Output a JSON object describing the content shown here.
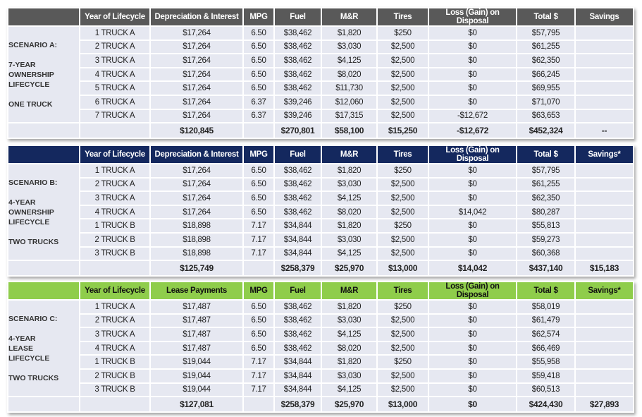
{
  "headers_ownership": [
    "",
    "Year of Lifecycle",
    "Depreciation & Interest",
    "MPG",
    "Fuel",
    "M&R",
    "Tires",
    "Loss (Gain) on Disposal",
    "Total $",
    "Savings"
  ],
  "tables": [
    {
      "id": "tA",
      "headers": [
        "",
        "Year of Lifecycle",
        "Depreciation & Interest",
        "MPG",
        "Fuel",
        "M&R",
        "Tires",
        "Loss (Gain) on Disposal",
        "Total $",
        "Savings"
      ],
      "label_lines": [
        "SCENARIO A:",
        "",
        "7-YEAR",
        "OWNERSHIP",
        "LIFECYCLE",
        "",
        "ONE TRUCK"
      ],
      "rows": [
        [
          "1 TRUCK A",
          "$17,264",
          "6.50",
          "$38,462",
          "$1,820",
          "$250",
          "$0",
          "$57,795",
          ""
        ],
        [
          "2 TRUCK A",
          "$17,264",
          "6.50",
          "$38,462",
          "$3,030",
          "$2,500",
          "$0",
          "$61,255",
          ""
        ],
        [
          "3 TRUCK A",
          "$17,264",
          "6.50",
          "$38,462",
          "$4,125",
          "$2,500",
          "$0",
          "$62,350",
          ""
        ],
        [
          "4 TRUCK A",
          "$17,264",
          "6.50",
          "$38,462",
          "$8,020",
          "$2,500",
          "$0",
          "$66,245",
          ""
        ],
        [
          "5 TRUCK A",
          "$17,264",
          "6.50",
          "$38,462",
          "$11,730",
          "$2,500",
          "$0",
          "$69,955",
          ""
        ],
        [
          "6 TRUCK A",
          "$17,264",
          "6.37",
          "$39,246",
          "$12,060",
          "$2,500",
          "$0",
          "$71,070",
          ""
        ],
        [
          "7 TRUCK A",
          "$17,264",
          "6.37",
          "$39,246",
          "$17,315",
          "$2,500",
          "-$12,672",
          "$63,653",
          ""
        ]
      ],
      "totals": [
        "",
        "$120,845",
        "",
        "$270,801",
        "$58,100",
        "$15,250",
        "-$12,672",
        "$452,324",
        "--"
      ]
    },
    {
      "id": "tB",
      "headers": [
        "",
        "Year of Lifecycle",
        "Depreciation & Interest",
        "MPG",
        "Fuel",
        "M&R",
        "Tires",
        "Loss (Gain) on Disposal",
        "Total $",
        "Savings*"
      ],
      "label_lines": [
        "SCENARIO B:",
        "",
        "4-YEAR",
        "OWNERSHIP",
        "LIFECYCLE",
        "",
        "TWO TRUCKS"
      ],
      "rows": [
        [
          "1 TRUCK A",
          "$17,264",
          "6.50",
          "$38,462",
          "$1,820",
          "$250",
          "$0",
          "$57,795",
          ""
        ],
        [
          "2 TRUCK A",
          "$17,264",
          "6.50",
          "$38,462",
          "$3,030",
          "$2,500",
          "$0",
          "$61,255",
          ""
        ],
        [
          "3 TRUCK A",
          "$17,264",
          "6.50",
          "$38,462",
          "$4,125",
          "$2,500",
          "$0",
          "$62,350",
          ""
        ],
        [
          "4 TRUCK A",
          "$17,264",
          "6.50",
          "$38,462",
          "$8,020",
          "$2,500",
          "$14,042",
          "$80,287",
          ""
        ],
        [
          "1 TRUCK B",
          "$18,898",
          "7.17",
          "$34,844",
          "$1,820",
          "$250",
          "$0",
          "$55,813",
          ""
        ],
        [
          "2 TRUCK B",
          "$18,898",
          "7.17",
          "$34,844",
          "$3,030",
          "$2,500",
          "$0",
          "$59,273",
          ""
        ],
        [
          "3 TRUCK B",
          "$18,898",
          "7.17",
          "$34,844",
          "$4,125",
          "$2,500",
          "$0",
          "$60,368",
          ""
        ]
      ],
      "totals": [
        "",
        "$125,749",
        "",
        "$258,379",
        "$25,970",
        "$13,000",
        "$14,042",
        "$437,140",
        "$15,183"
      ]
    },
    {
      "id": "tC",
      "headers": [
        "",
        "Year of Lifecycle",
        "Lease Payments",
        "MPG",
        "Fuel",
        "M&R",
        "Tires",
        "Loss (Gain) on Disposal",
        "Total $",
        "Savings*"
      ],
      "label_lines": [
        "SCENARIO C:",
        "",
        "4-YEAR",
        "LEASE",
        "LIFECYCLE",
        "",
        "TWO TRUCKS"
      ],
      "rows": [
        [
          "1 TRUCK A",
          "$17,487",
          "6.50",
          "$38,462",
          "$1,820",
          "$250",
          "$0",
          "$58,019",
          ""
        ],
        [
          "2 TRUCK A",
          "$17,487",
          "6.50",
          "$38,462",
          "$3,030",
          "$2,500",
          "$0",
          "$61,479",
          ""
        ],
        [
          "3 TRUCK A",
          "$17,487",
          "6.50",
          "$38,462",
          "$4,125",
          "$2,500",
          "$0",
          "$62,574",
          ""
        ],
        [
          "4 TRUCK A",
          "$17,487",
          "6.50",
          "$38,462",
          "$8,020",
          "$2,500",
          "$0",
          "$66,469",
          ""
        ],
        [
          "1 TRUCK B",
          "$19,044",
          "7.17",
          "$34,844",
          "$1,820",
          "$250",
          "$0",
          "$55,958",
          ""
        ],
        [
          "2 TRUCK B",
          "$19,044",
          "7.17",
          "$34,844",
          "$3,030",
          "$2,500",
          "$0",
          "$59,418",
          ""
        ],
        [
          "3 TRUCK B",
          "$19,044",
          "7.17",
          "$34,844",
          "$4,125",
          "$2,500",
          "$0",
          "$60,513",
          ""
        ]
      ],
      "totals": [
        "",
        "$127,081",
        "",
        "$258,379",
        "$25,970",
        "$13,000",
        "$0",
        "$424,430",
        "$27,893"
      ]
    }
  ],
  "header_colors": {
    "scenario_a": "#595959",
    "scenario_b": "#14285e",
    "scenario_c": "#8fcd4b"
  }
}
